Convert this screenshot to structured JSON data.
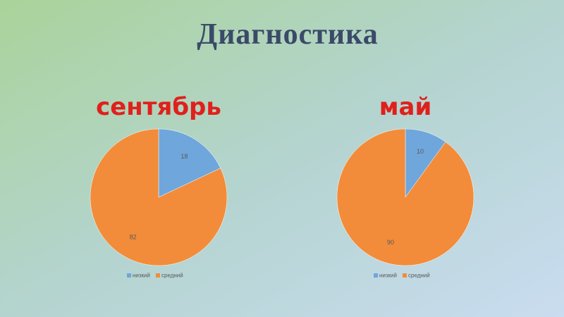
{
  "title": "Диагностика",
  "chart_data": [
    {
      "type": "pie",
      "title": "сентябрь",
      "categories": [
        "низкий",
        "средний"
      ],
      "values": [
        18,
        82
      ],
      "colors": [
        "#6fa6dc",
        "#f28c3a"
      ]
    },
    {
      "type": "pie",
      "title": "май",
      "categories": [
        "низкий",
        "средний"
      ],
      "values": [
        10,
        90
      ],
      "colors": [
        "#6fa6dc",
        "#f28c3a"
      ]
    }
  ]
}
